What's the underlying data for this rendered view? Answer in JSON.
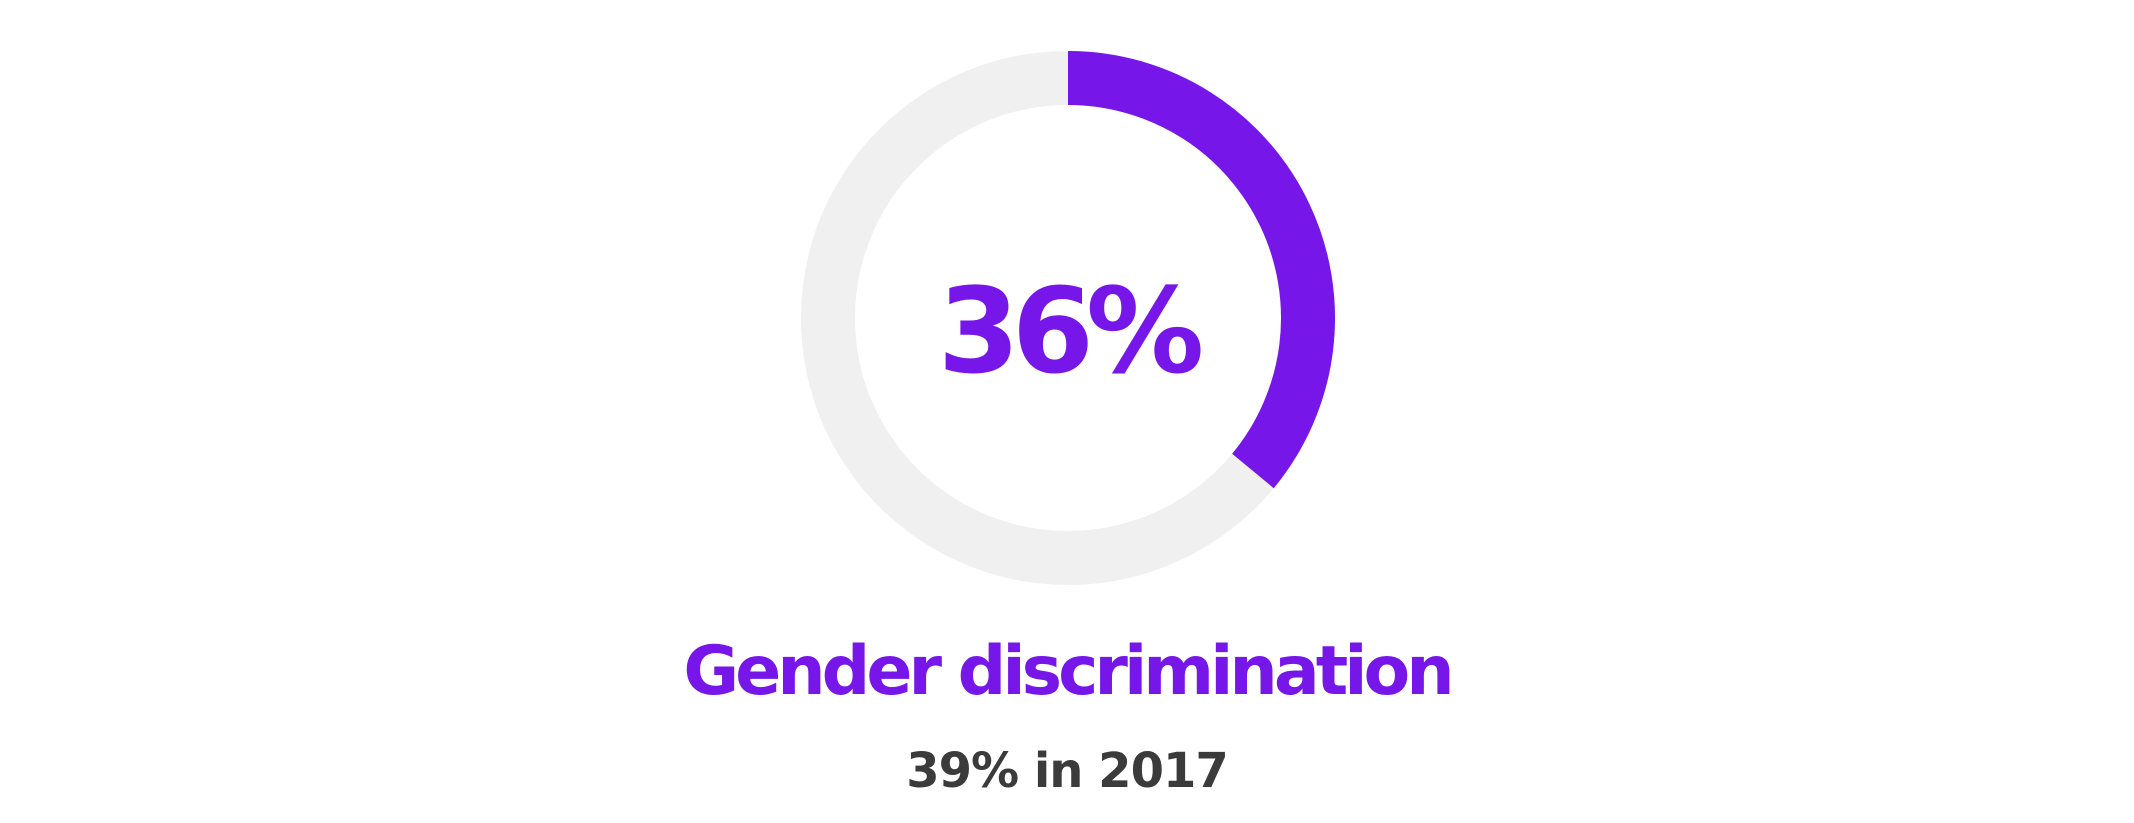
{
  "chart_data": {
    "type": "pie",
    "values": [
      36,
      64
    ],
    "center_label": "36%",
    "title": "Gender discrimination",
    "subtitle": "39% in 2017"
  },
  "colors": {
    "accent": "#7616e8",
    "track": "#f0f0f0",
    "subtitle": "#3b3b3b"
  }
}
